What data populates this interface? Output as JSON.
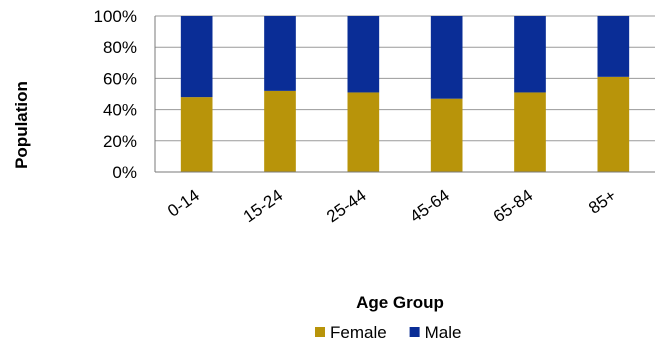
{
  "chart_data": {
    "type": "bar",
    "stacked": true,
    "percent_stacked": true,
    "title": "",
    "xlabel": "Age Group",
    "ylabel": "Population",
    "categories": [
      "0-14",
      "15-24",
      "25-44",
      "45-64",
      "65-84",
      "85+"
    ],
    "series": [
      {
        "name": "Female",
        "color": "#B8940A",
        "values": [
          48,
          52,
          51,
          47,
          51,
          61
        ]
      },
      {
        "name": "Male",
        "color": "#0A2D96",
        "values": [
          52,
          48,
          49,
          53,
          49,
          39
        ]
      }
    ],
    "ylim": [
      0,
      100
    ],
    "yticks": [
      "0%",
      "20%",
      "40%",
      "60%",
      "80%",
      "100%"
    ],
    "grid": true,
    "legend_position": "bottom"
  }
}
